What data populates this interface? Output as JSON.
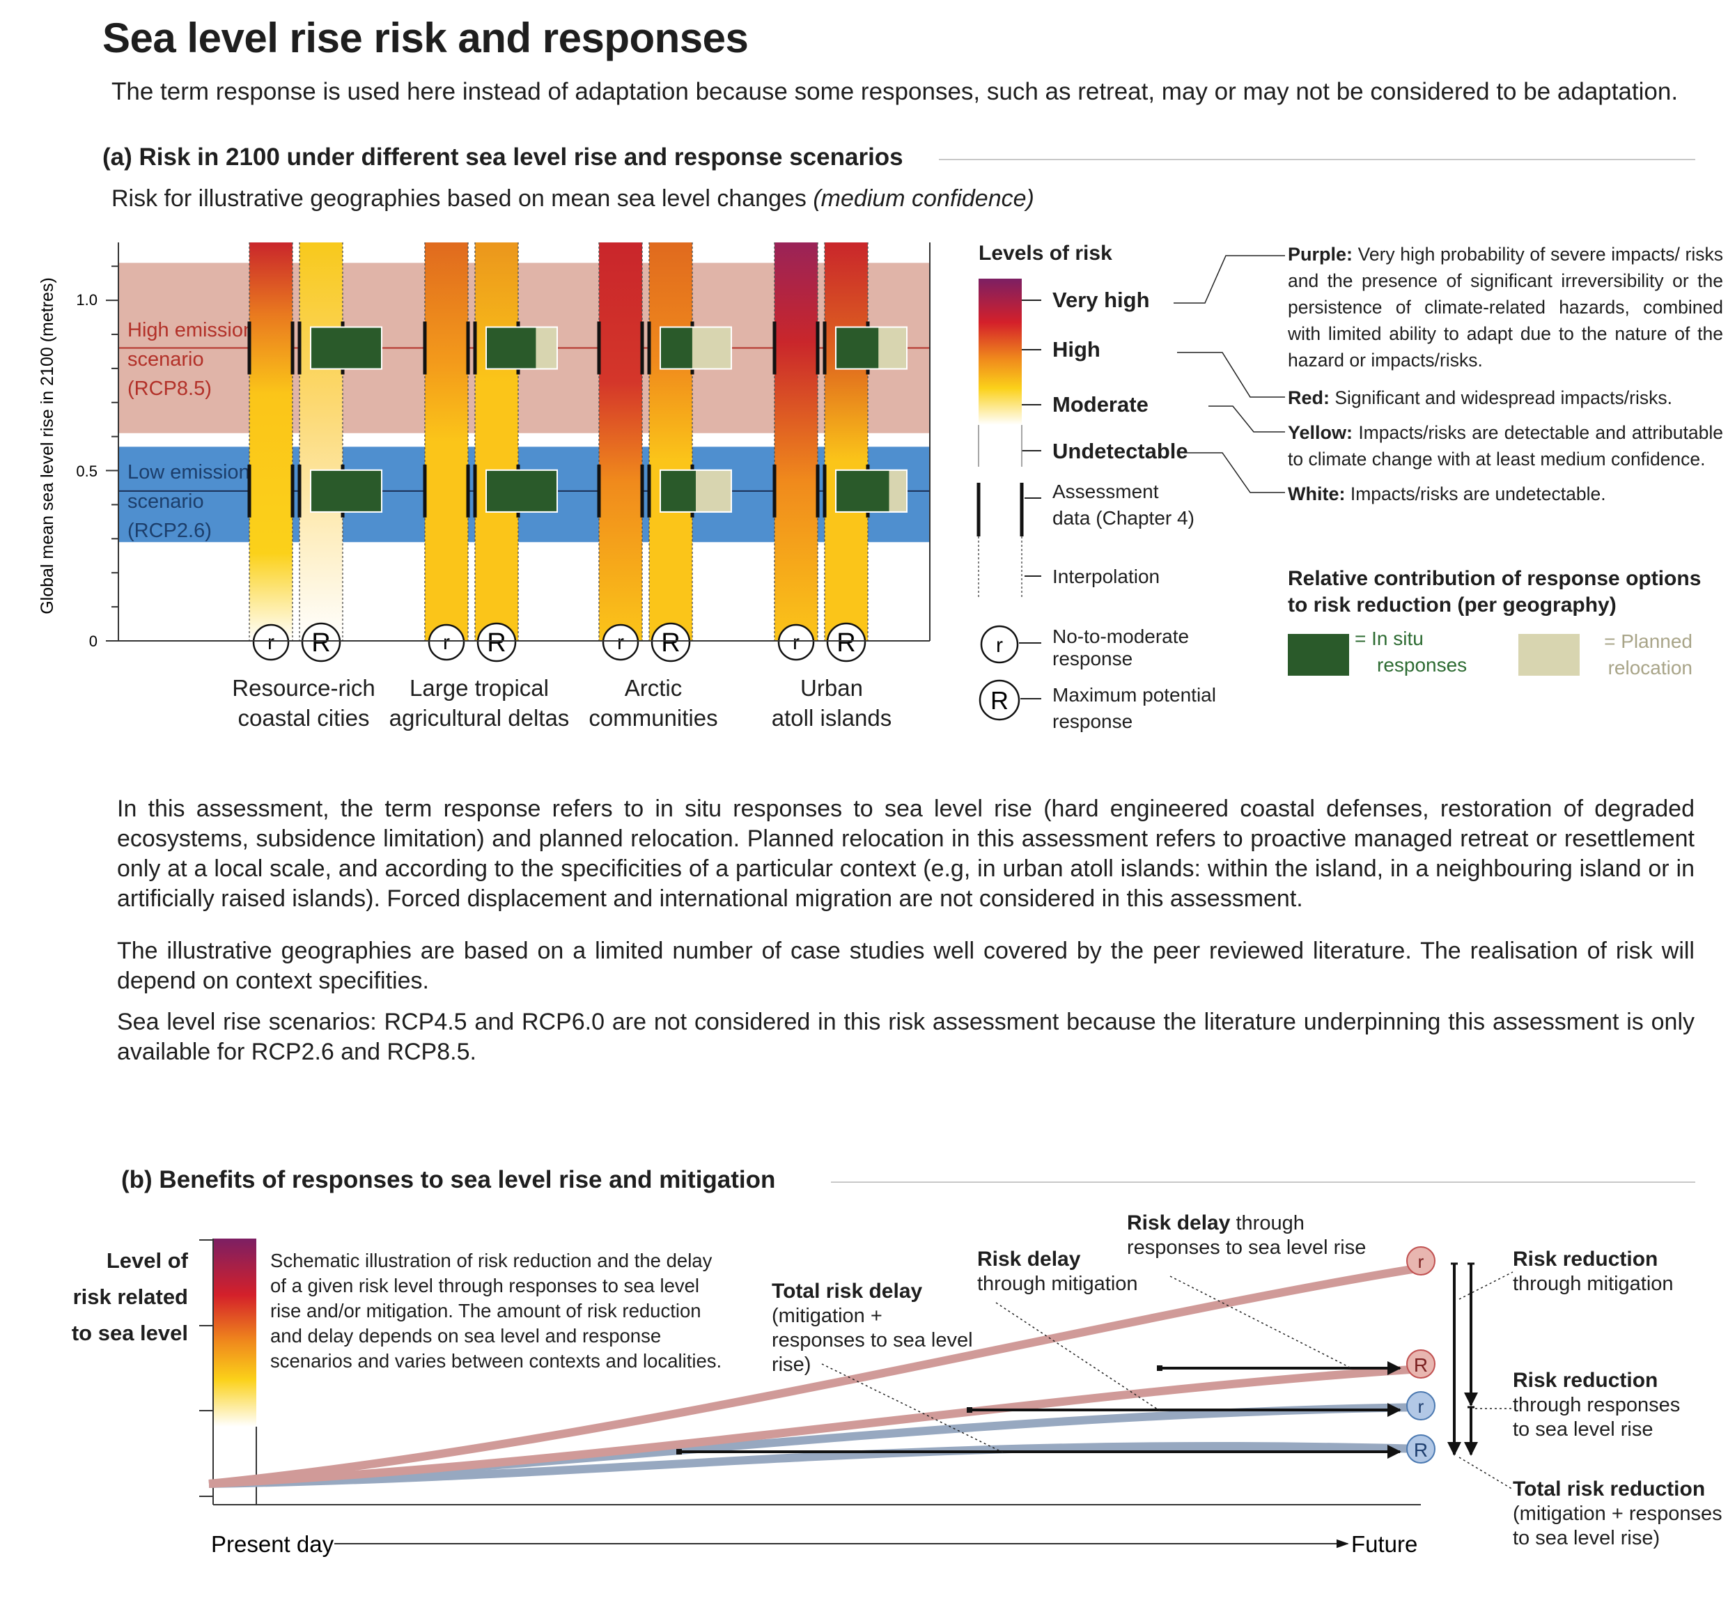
{
  "title": "Sea level rise risk and responses",
  "subtitle": "The term response is used here instead of adaptation because some responses, such as retreat, may or may not be considered to be adaptation.",
  "panel_a": {
    "heading": "(a) Risk in 2100 under different sea level rise and response scenarios",
    "subheading_main": "Risk for illustrative geographies based on mean sea level changes ",
    "subheading_italic": "(medium confidence)",
    "chart_data": {
      "type": "bar",
      "ylabel": "Global mean sea level rise in 2100 (metres)",
      "ylim": [
        0,
        1.17
      ],
      "yticks": [
        "1.0",
        "0.5",
        "0"
      ],
      "scenarios": [
        {
          "name": "High emission scenario (RCP8.5)",
          "line1": "High emission",
          "line2": "scenario",
          "line3": "(RCP8.5)",
          "band": [
            0.61,
            1.11
          ],
          "level": 0.86,
          "color": "#e0b4a8"
        },
        {
          "name": "Low emission scenario (RCP2.6)",
          "line1": "Low emission",
          "line2": "scenario",
          "line3": "(RCP2.6)",
          "band": [
            0.29,
            0.57
          ],
          "level": 0.44,
          "color": "#4f8fcf"
        }
      ],
      "categories": [
        "Resource-rich coastal cities",
        "Large tropical agricultural deltas",
        "Arctic communities",
        "Urban atoll islands"
      ],
      "response_labels": [
        "r",
        "R"
      ],
      "relative_contribution_high": [
        {
          "in_situ": 1.0,
          "planned_relocation": 0.0
        },
        {
          "in_situ": 0.7,
          "planned_relocation": 0.3
        },
        {
          "in_situ": 0.45,
          "planned_relocation": 0.55
        },
        {
          "in_situ": 0.6,
          "planned_relocation": 0.4
        }
      ],
      "relative_contribution_low": [
        {
          "in_situ": 1.0,
          "planned_relocation": 0.0
        },
        {
          "in_situ": 1.0,
          "planned_relocation": 0.0
        },
        {
          "in_situ": 0.5,
          "planned_relocation": 0.5
        },
        {
          "in_situ": 0.75,
          "planned_relocation": 0.25
        }
      ]
    },
    "geo_labels": [
      {
        "line1": "Resource-rich",
        "line2": "coastal cities"
      },
      {
        "line1": "Large tropical",
        "line2": "agricultural deltas"
      },
      {
        "line1": "Arctic",
        "line2": "communities"
      },
      {
        "line1": "Urban",
        "line2": "atoll islands"
      }
    ],
    "legend": {
      "levels_title": "Levels of risk",
      "levels": [
        "Very high",
        "High",
        "Moderate",
        "Undetectable"
      ],
      "assessment": "Assessment data (Chapter 4)",
      "assessment_line1": "Assessment",
      "assessment_line2": "data (Chapter 4)",
      "interpolation": "Interpolation",
      "r_line1": "No-to-moderate",
      "r_line2": "response",
      "R_line1": "Maximum potential",
      "R_line2": "response",
      "definitions": [
        {
          "term": "Purple:",
          "text": " Very high probability of severe impacts/ risks and the presence of significant irreversibility or the persistence of climate-related hazards, combined with limited ability to adapt due to the nature of the hazard or impacts/risks."
        },
        {
          "term": "Red:",
          "text": " Significant and widespread impacts/risks."
        },
        {
          "term": "Yellow:",
          "text": " Impacts/risks are detectable and attributable to climate change with at least medium confidence."
        },
        {
          "term": "White:",
          "text": " Impacts/risks are undetectable."
        }
      ],
      "contrib_title_line1": "Relative contribution of response options",
      "contrib_title_line2": "to risk reduction (per geography)",
      "in_situ_line1": "= In situ",
      "in_situ_line2": "responses",
      "planned_line1": "= Planned",
      "planned_line2": "relocation",
      "colors": {
        "in_situ": "#2a5a2a",
        "planned": "#d8d5b0"
      }
    },
    "paragraphs": [
      "In this assessment, the term response refers to in situ responses to sea level rise (hard engineered coastal defenses, restoration of degraded ecosystems, subsidence limitation) and planned relocation. Planned relocation in this assessment refers to proactive managed retreat or resettlement only at a local scale, and according to the specificities of a particular context (e.g, in urban atoll islands: within the island, in a neighbouring island or in artificially raised islands). Forced displacement and international migration are not considered in this assessment.",
      "The illustrative geographies are based on a limited number of case studies well covered by the peer reviewed literature. The realisation of risk will depend on context specifities.",
      "Sea level rise scenarios: RCP4.5 and RCP6.0 are not considered in this risk assessment because the literature underpinning this assessment is only available for RCP2.6 and RCP8.5."
    ]
  },
  "panel_b": {
    "heading": "(b) Benefits of responses to sea level rise and mitigation",
    "ylabel_line1": "Level of",
    "ylabel_line2": "risk related",
    "ylabel_line3": "to sea level",
    "schematic_text": "Schematic illustration of risk reduction and the delay of a given risk level through responses to sea level rise and/or mitigation. The amount of risk reduction and delay depends on sea level and response scenarios and varies between contexts and localities.",
    "x_start": "Present day",
    "x_end": "Future",
    "endpoint_labels": [
      "r",
      "R",
      "r",
      "R"
    ],
    "annotations": {
      "total_delay_bold": "Total risk delay",
      "total_delay_rest": "(mitigation + responses to sea level rise)",
      "delay_mitigation_bold": "Risk delay",
      "delay_mitigation_rest": "through mitigation",
      "delay_responses_bold": "Risk delay",
      "delay_responses_rest1": " through",
      "delay_responses_rest2": "responses to sea level rise",
      "red_mitigation_bold": "Risk reduction",
      "red_mitigation_rest": "through mitigation",
      "red_responses_bold": "Risk reduction",
      "red_responses_rest1": "through responses",
      "red_responses_rest2": "to sea level rise",
      "total_red_bold": "Total risk reduction",
      "total_red_rest1": "(mitigation + responses",
      "total_red_rest2": "to sea level rise)"
    },
    "colors": {
      "high": "#d09a98",
      "low": "#97a8c0"
    }
  }
}
